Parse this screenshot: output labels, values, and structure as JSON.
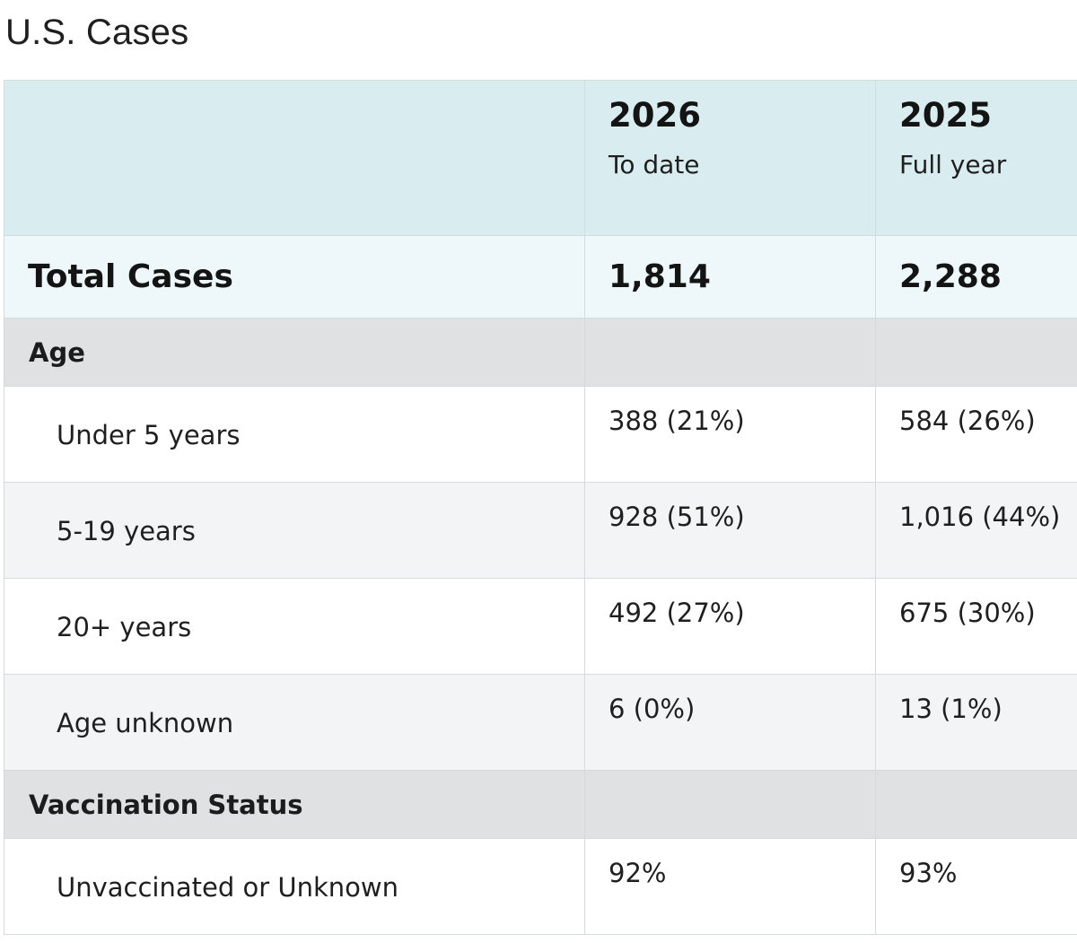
{
  "page": {
    "title": "U.S. Cases"
  },
  "table": {
    "header": {
      "columns": [
        {
          "year": "2026",
          "period": "To date"
        },
        {
          "year": "2025",
          "period": "Full year"
        }
      ]
    },
    "total": {
      "label": "Total Cases",
      "values": [
        "1,814",
        "2,288"
      ]
    },
    "sections": [
      {
        "label": "Age",
        "rows": [
          {
            "label": "Under 5 years",
            "values": [
              "388 (21%)",
              "584 (26%)"
            ]
          },
          {
            "label": "5-19 years",
            "values": [
              "928 (51%)",
              "1,016 (44%)"
            ]
          },
          {
            "label": "20+ years",
            "values": [
              "492 (27%)",
              "675 (30%)"
            ]
          },
          {
            "label": "Age unknown",
            "values": [
              "6 (0%)",
              "13 (1%)"
            ]
          }
        ]
      },
      {
        "label": "Vaccination Status",
        "rows": [
          {
            "label": "Unvaccinated or Unknown",
            "values": [
              "92%",
              "93%"
            ]
          }
        ]
      }
    ]
  },
  "colors": {
    "header_bg": "#d9ecf0",
    "total_bg": "#eef7f9",
    "section_bg": "#e0e1e3",
    "row_alt_bg": "#f3f4f6",
    "border": "#d5dadd"
  }
}
